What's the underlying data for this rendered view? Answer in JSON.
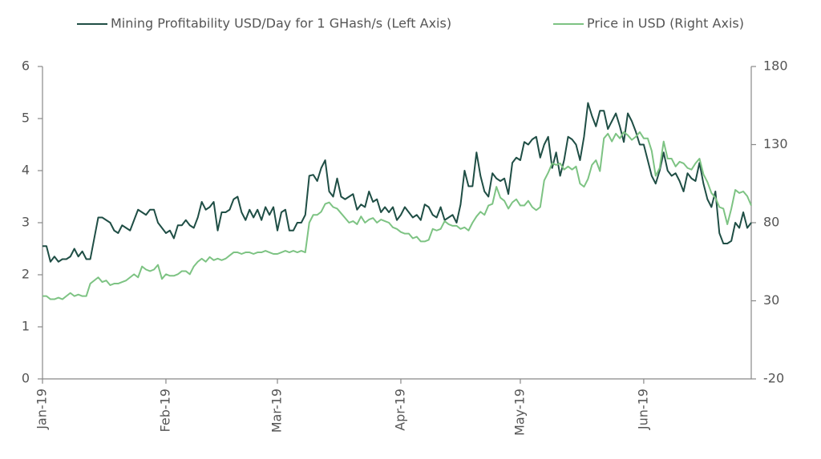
{
  "chart_data": {
    "type": "line",
    "categories": [
      "Jan-19",
      null,
      null,
      null,
      null,
      null,
      null,
      null,
      null,
      null,
      null,
      null,
      null,
      null,
      null,
      null,
      null,
      null,
      null,
      null,
      null,
      null,
      null,
      null,
      null,
      null,
      null,
      null,
      null,
      null,
      null,
      "Feb-19",
      null,
      null,
      null,
      null,
      null,
      null,
      null,
      null,
      null,
      null,
      null,
      null,
      null,
      null,
      null,
      null,
      null,
      null,
      null,
      null,
      null,
      null,
      null,
      null,
      null,
      null,
      null,
      "Mar-19",
      null,
      null,
      null,
      null,
      null,
      null,
      null,
      null,
      null,
      null,
      null,
      null,
      null,
      null,
      null,
      null,
      null,
      null,
      null,
      null,
      null,
      null,
      null,
      null,
      null,
      null,
      null,
      null,
      null,
      null,
      "Apr-19",
      null,
      null,
      null,
      null,
      null,
      null,
      null,
      null,
      null,
      null,
      null,
      null,
      null,
      null,
      null,
      null,
      null,
      null,
      null,
      null,
      null,
      null,
      null,
      null,
      null,
      null,
      null,
      null,
      null,
      "May-19",
      null,
      null,
      null,
      null,
      null,
      null,
      null,
      null,
      null,
      null,
      null,
      null,
      null,
      null,
      null,
      null,
      null,
      null,
      null,
      null,
      null,
      null,
      null,
      null,
      null,
      null,
      null,
      null,
      null,
      null,
      "Jun-19",
      null,
      null,
      null,
      null,
      null,
      null,
      null,
      null,
      null,
      null,
      null,
      null,
      null,
      null,
      null,
      null,
      null,
      null,
      null,
      null,
      null,
      null,
      null,
      null,
      null,
      null,
      null
    ],
    "series": [
      {
        "name": "Mining Profitability USD/Day for 1 GHash/s (Left Axis)",
        "color": "#1f4e45",
        "axis": "y",
        "values": [
          2.55,
          2.55,
          2.25,
          2.35,
          2.25,
          2.3,
          2.3,
          2.35,
          2.5,
          2.35,
          2.45,
          2.3,
          2.3,
          2.7,
          3.1,
          3.1,
          3.05,
          3.0,
          2.85,
          2.8,
          2.95,
          2.9,
          2.85,
          3.05,
          3.25,
          3.2,
          3.15,
          3.25,
          3.25,
          3.0,
          2.9,
          2.8,
          2.85,
          2.7,
          2.95,
          2.95,
          3.05,
          2.95,
          2.9,
          3.1,
          3.4,
          3.25,
          3.3,
          3.4,
          2.85,
          3.2,
          3.2,
          3.25,
          3.45,
          3.5,
          3.2,
          3.05,
          3.25,
          3.1,
          3.25,
          3.05,
          3.3,
          3.15,
          3.3,
          2.85,
          3.2,
          3.25,
          2.85,
          2.85,
          3.0,
          3.0,
          3.15,
          3.9,
          3.92,
          3.8,
          4.05,
          4.2,
          3.6,
          3.5,
          3.85,
          3.5,
          3.45,
          3.5,
          3.55,
          3.25,
          3.35,
          3.3,
          3.6,
          3.4,
          3.45,
          3.2,
          3.3,
          3.2,
          3.3,
          3.05,
          3.15,
          3.3,
          3.2,
          3.1,
          3.15,
          3.05,
          3.35,
          3.3,
          3.15,
          3.1,
          3.3,
          3.05,
          3.1,
          3.15,
          3.0,
          3.35,
          4.0,
          3.7,
          3.7,
          4.35,
          3.9,
          3.6,
          3.5,
          3.95,
          3.85,
          3.8,
          3.85,
          3.55,
          4.15,
          4.25,
          4.2,
          4.55,
          4.5,
          4.6,
          4.65,
          4.25,
          4.5,
          4.65,
          4.05,
          4.35,
          3.9,
          4.2,
          4.65,
          4.6,
          4.5,
          4.2,
          4.65,
          5.3,
          5.05,
          4.85,
          5.15,
          5.15,
          4.8,
          4.95,
          5.1,
          4.85,
          4.55,
          5.1,
          4.95,
          4.75,
          4.5,
          4.5,
          4.2,
          3.9,
          3.75,
          4.0,
          4.35,
          4.0,
          3.9,
          3.95,
          3.8,
          3.6,
          3.95,
          3.85,
          3.8,
          4.15,
          3.75,
          3.45,
          3.3,
          3.6,
          2.8,
          2.6,
          2.6,
          2.65,
          3.0,
          2.9,
          3.2,
          2.9,
          3.0
        ]
      },
      {
        "name": "Price in USD (Right Axis)",
        "color": "#7dc383",
        "axis": "y2",
        "values": [
          33,
          33,
          31,
          31,
          32,
          31,
          33,
          35,
          33,
          34,
          33,
          33,
          41,
          43,
          45,
          42,
          43,
          40,
          41,
          41,
          42,
          43,
          45,
          47,
          45,
          52,
          50,
          49,
          50,
          53,
          44,
          47,
          46,
          46,
          47,
          49,
          49,
          47,
          52,
          55,
          57,
          55,
          58,
          56,
          57,
          56,
          57,
          59,
          61,
          61,
          60,
          61,
          61,
          60,
          61,
          61,
          62,
          61,
          60,
          60,
          61,
          62,
          61,
          62,
          61,
          62,
          61,
          80,
          85,
          85,
          87,
          92,
          93,
          90,
          89,
          86,
          83,
          80,
          81,
          79,
          84,
          80,
          82,
          83,
          80,
          82,
          81,
          80,
          77,
          76,
          74,
          73,
          73,
          70,
          71,
          68,
          68,
          69,
          76,
          75,
          76,
          81,
          79,
          78,
          78,
          76,
          77,
          75,
          80,
          84,
          87,
          85,
          91,
          92,
          103,
          96,
          94,
          89,
          93,
          95,
          91,
          91,
          94,
          90,
          88,
          90,
          107,
          112,
          118,
          117,
          118,
          114,
          116,
          114,
          116,
          105,
          103,
          108,
          117,
          120,
          113,
          134,
          137,
          132,
          137,
          134,
          138,
          136,
          133,
          135,
          138,
          134,
          134,
          126,
          110,
          115,
          132,
          121,
          121,
          116,
          119,
          118,
          115,
          114,
          118,
          121,
          111,
          106,
          99,
          96,
          90,
          89,
          79,
          89,
          101,
          99,
          100,
          97,
          91
        ]
      }
    ],
    "ylim": [
      0,
      6
    ],
    "yticks": [
      0,
      1,
      2,
      3,
      4,
      5,
      6
    ],
    "y2lim": [
      -20,
      180
    ],
    "y2ticks": [
      -20,
      30,
      80,
      130,
      180
    ],
    "legend": "top"
  }
}
